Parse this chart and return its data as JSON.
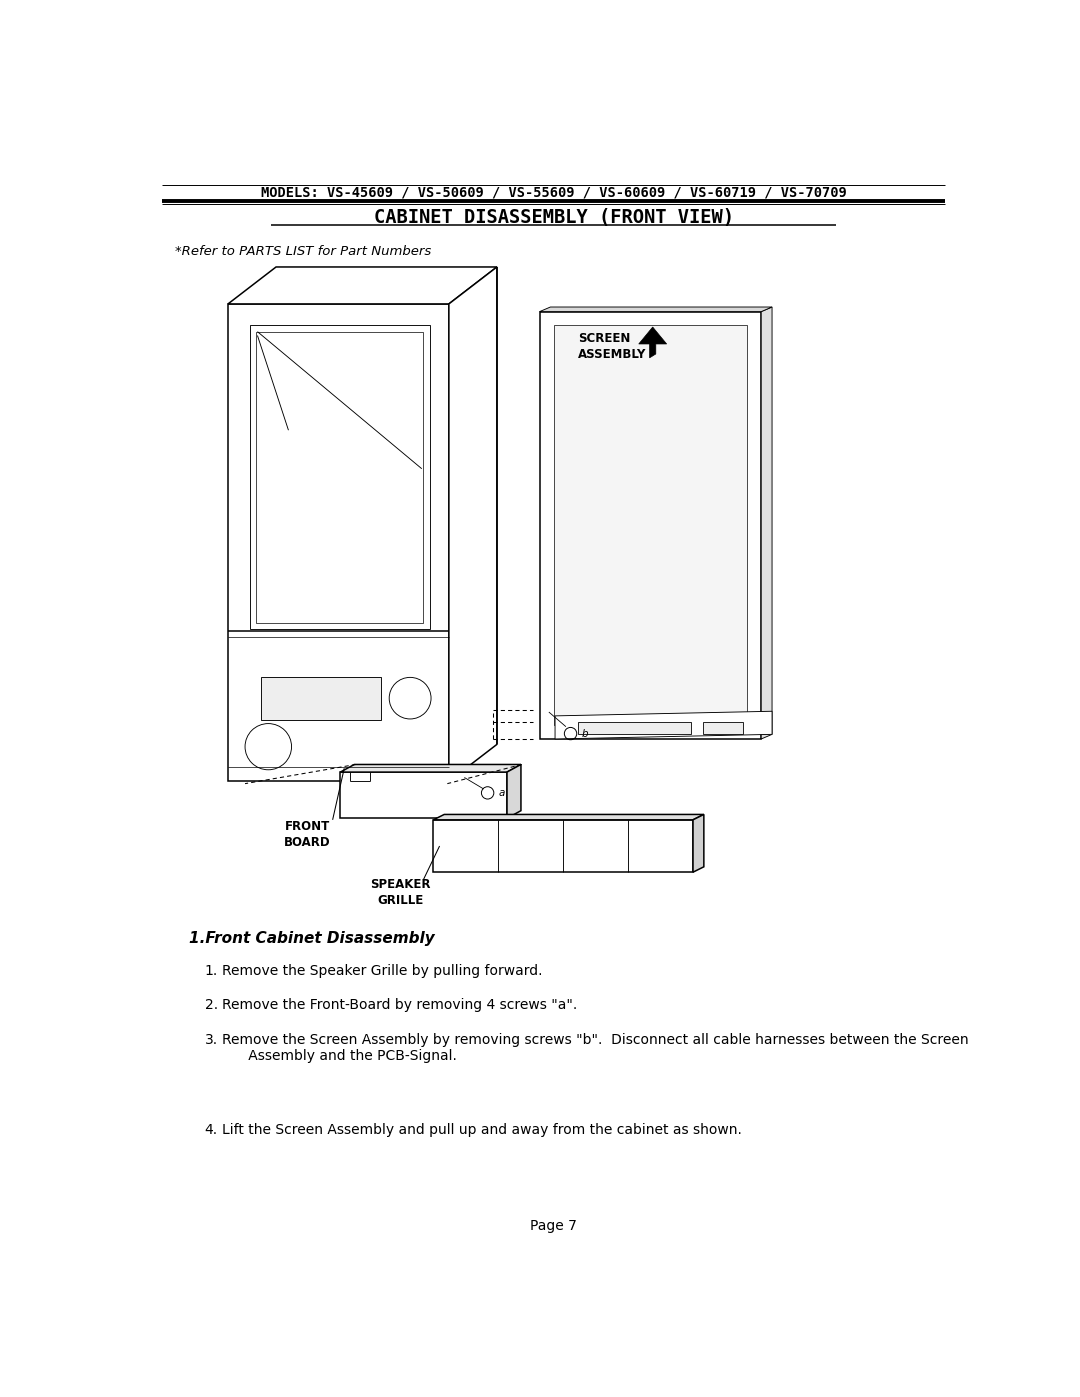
{
  "title_top": "MODELS: VS-45609 / VS-50609 / VS-55609 / VS-60609 / VS-60719 / VS-70709",
  "title_main": "CABINET DISASSEMBLY (FRONT VIEW)",
  "subtitle": "*Refer to PARTS LIST for Part Numbers",
  "label_screen": "SCREEN\nASSEMBLY",
  "label_front_board": "FRONT\nBOARD",
  "label_speaker": "SPEAKER\nGRILLE",
  "instructions_title": "1.Front Cabinet Disassembly",
  "instruction_1": "Remove the Speaker Grille by pulling forward.",
  "instruction_2": "Remove the Front-Board by removing 4 screws \"a\".",
  "instruction_3": "Remove the Screen Assembly by removing screws \"b\".  Disconnect all cable harnesses between the Screen\n      Assembly and the PCB-Signal.",
  "instruction_4": "Lift the Screen Assembly and pull up and away from the cabinet as shown.",
  "page_number": "Page 7",
  "bg_color": "#ffffff",
  "lc": "#000000"
}
